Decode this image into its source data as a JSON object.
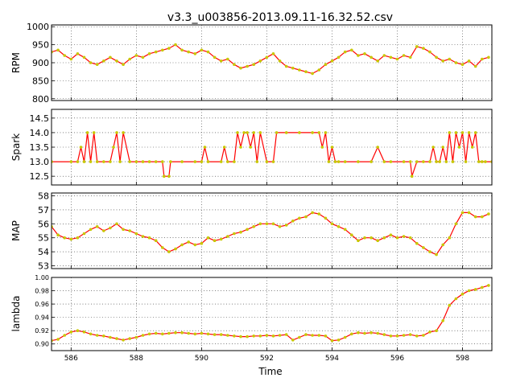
{
  "figure": {
    "title": "v3.3_u003856-2013.09.11-16.32.52.csv",
    "xlabel": "Time",
    "line_color": "#ff0000",
    "marker_color": "#c8c800"
  },
  "chart_data": [
    {
      "type": "line",
      "ylabel": "RPM",
      "xlim": [
        585.4,
        598.9
      ],
      "ylim": [
        795,
        1005
      ],
      "yticks": [
        "800",
        "850",
        "900",
        "950",
        "1000"
      ],
      "ytick_values": [
        800,
        850,
        900,
        950,
        1000
      ],
      "xticks": [],
      "grid": true,
      "series": [
        {
          "x": [
            585.4,
            585.6,
            585.8,
            586.0,
            586.2,
            586.4,
            586.6,
            586.8,
            587.0,
            587.2,
            587.4,
            587.6,
            587.8,
            588.0,
            588.2,
            588.4,
            588.6,
            588.8,
            589.0,
            589.2,
            589.4,
            589.6,
            589.8,
            590.0,
            590.2,
            590.4,
            590.6,
            590.8,
            591.0,
            591.2,
            591.4,
            591.6,
            591.8,
            592.0,
            592.2,
            592.4,
            592.6,
            592.8,
            593.0,
            593.2,
            593.4,
            593.6,
            593.8,
            594.0,
            594.2,
            594.4,
            594.6,
            594.8,
            595.0,
            595.2,
            595.4,
            595.6,
            595.8,
            596.0,
            596.2,
            596.4,
            596.6,
            596.8,
            597.0,
            597.2,
            597.4,
            597.6,
            597.8,
            598.0,
            598.2,
            598.4,
            598.6,
            598.8
          ],
          "y": [
            930,
            935,
            920,
            910,
            925,
            915,
            900,
            895,
            905,
            915,
            905,
            895,
            910,
            920,
            915,
            925,
            930,
            935,
            940,
            950,
            935,
            930,
            925,
            935,
            930,
            915,
            905,
            910,
            895,
            885,
            890,
            895,
            905,
            915,
            925,
            905,
            890,
            885,
            880,
            875,
            870,
            880,
            895,
            905,
            915,
            930,
            935,
            920,
            925,
            915,
            905,
            920,
            915,
            910,
            920,
            915,
            945,
            940,
            930,
            915,
            905,
            910,
            900,
            895,
            905,
            890,
            910,
            915
          ]
        }
      ]
    },
    {
      "type": "line",
      "ylabel": "Spark",
      "xlim": [
        585.4,
        598.9
      ],
      "ylim": [
        12.2,
        14.8
      ],
      "yticks": [
        "12.5",
        "13.0",
        "13.5",
        "14.0",
        "14.5"
      ],
      "ytick_values": [
        12.5,
        13.0,
        13.5,
        14.0,
        14.5
      ],
      "xticks": [],
      "grid": true,
      "series": [
        {
          "x": [
            585.4,
            586.0,
            586.2,
            586.3,
            586.4,
            586.5,
            586.6,
            586.7,
            586.8,
            587.0,
            587.2,
            587.3,
            587.4,
            587.5,
            587.6,
            587.8,
            588.0,
            588.2,
            588.4,
            588.6,
            588.8,
            588.85,
            589.0,
            589.05,
            589.4,
            589.8,
            590.0,
            590.1,
            590.2,
            590.6,
            590.7,
            590.8,
            591.0,
            591.1,
            591.2,
            591.3,
            591.4,
            591.5,
            591.6,
            591.7,
            591.8,
            592.0,
            592.2,
            592.3,
            592.6,
            593.0,
            593.4,
            593.6,
            593.7,
            593.8,
            593.9,
            594.0,
            594.1,
            594.2,
            594.4,
            594.8,
            595.2,
            595.4,
            595.6,
            595.8,
            596.2,
            596.4,
            596.45,
            596.6,
            596.8,
            597.0,
            597.1,
            597.2,
            597.3,
            597.4,
            597.5,
            597.6,
            597.7,
            597.8,
            597.9,
            598.0,
            598.1,
            598.2,
            598.3,
            598.4,
            598.5,
            598.6,
            598.7,
            598.9
          ],
          "y": [
            13.0,
            13.0,
            13.0,
            13.5,
            13.0,
            14.0,
            13.0,
            14.0,
            13.0,
            13.0,
            13.0,
            13.5,
            14.0,
            13.0,
            14.0,
            13.0,
            13.0,
            13.0,
            13.0,
            13.0,
            13.0,
            12.5,
            12.5,
            13.0,
            13.0,
            13.0,
            13.0,
            13.5,
            13.0,
            13.0,
            13.5,
            13.0,
            13.0,
            14.0,
            13.5,
            14.0,
            14.0,
            13.5,
            14.0,
            13.0,
            14.0,
            13.0,
            13.0,
            14.0,
            14.0,
            14.0,
            14.0,
            14.0,
            13.5,
            14.0,
            13.0,
            13.5,
            13.0,
            13.0,
            13.0,
            13.0,
            13.0,
            13.5,
            13.0,
            13.0,
            13.0,
            13.0,
            12.5,
            13.0,
            13.0,
            13.0,
            13.5,
            13.0,
            13.0,
            13.5,
            13.0,
            14.0,
            13.0,
            14.0,
            13.5,
            14.0,
            13.0,
            14.0,
            13.5,
            14.0,
            13.0,
            13.0,
            13.0,
            13.0
          ]
        }
      ]
    },
    {
      "type": "line",
      "ylabel": "MAP",
      "xlim": [
        585.4,
        598.9
      ],
      "ylim": [
        52.8,
        58.2
      ],
      "yticks": [
        "53",
        "54",
        "55",
        "56",
        "57",
        "58"
      ],
      "ytick_values": [
        53,
        54,
        55,
        56,
        57,
        58
      ],
      "xticks": [],
      "grid": true,
      "series": [
        {
          "x": [
            585.4,
            585.6,
            585.8,
            586.0,
            586.2,
            586.4,
            586.6,
            586.8,
            587.0,
            587.2,
            587.4,
            587.6,
            587.8,
            588.0,
            588.2,
            588.4,
            588.6,
            588.8,
            589.0,
            589.2,
            589.4,
            589.6,
            589.8,
            590.0,
            590.2,
            590.4,
            590.6,
            590.8,
            591.0,
            591.2,
            591.4,
            591.6,
            591.8,
            592.0,
            592.2,
            592.4,
            592.6,
            592.8,
            593.0,
            593.2,
            593.4,
            593.6,
            593.8,
            594.0,
            594.2,
            594.4,
            594.6,
            594.8,
            595.0,
            595.2,
            595.4,
            595.6,
            595.8,
            596.0,
            596.2,
            596.4,
            596.6,
            596.8,
            597.0,
            597.2,
            597.4,
            597.6,
            597.8,
            598.0,
            598.2,
            598.4,
            598.6,
            598.8
          ],
          "y": [
            55.8,
            55.2,
            55.0,
            54.9,
            55.0,
            55.3,
            55.6,
            55.8,
            55.5,
            55.7,
            56.0,
            55.6,
            55.5,
            55.3,
            55.1,
            55.0,
            54.8,
            54.3,
            54.0,
            54.2,
            54.5,
            54.7,
            54.5,
            54.6,
            55.0,
            54.8,
            54.9,
            55.1,
            55.3,
            55.4,
            55.6,
            55.8,
            56.0,
            56.0,
            56.0,
            55.8,
            55.9,
            56.2,
            56.4,
            56.5,
            56.8,
            56.7,
            56.4,
            56.0,
            55.8,
            55.6,
            55.2,
            54.8,
            55.0,
            55.0,
            54.8,
            55.0,
            55.2,
            55.0,
            55.1,
            55.0,
            54.6,
            54.3,
            54.0,
            53.8,
            54.5,
            55.0,
            56.0,
            56.8,
            56.8,
            56.5,
            56.5,
            56.7
          ]
        }
      ]
    },
    {
      "type": "line",
      "ylabel": "lambda",
      "xlim": [
        585.4,
        598.9
      ],
      "ylim": [
        0.89,
        1.0
      ],
      "yticks": [
        "0.90",
        "0.92",
        "0.94",
        "0.96",
        "0.98",
        "1.00"
      ],
      "ytick_values": [
        0.9,
        0.92,
        0.94,
        0.96,
        0.98,
        1.0
      ],
      "xticks": [
        "586",
        "588",
        "590",
        "592",
        "594",
        "596",
        "598"
      ],
      "xtick_values": [
        586,
        588,
        590,
        592,
        594,
        596,
        598
      ],
      "grid": true,
      "series": [
        {
          "x": [
            585.4,
            585.6,
            585.8,
            586.0,
            586.2,
            586.4,
            586.6,
            586.8,
            587.0,
            587.2,
            587.4,
            587.6,
            587.8,
            588.0,
            588.2,
            588.4,
            588.6,
            588.8,
            589.0,
            589.2,
            589.4,
            589.6,
            589.8,
            590.0,
            590.2,
            590.4,
            590.6,
            590.8,
            591.0,
            591.2,
            591.4,
            591.6,
            591.8,
            592.0,
            592.2,
            592.4,
            592.6,
            592.8,
            593.0,
            593.2,
            593.4,
            593.6,
            593.8,
            594.0,
            594.2,
            594.4,
            594.6,
            594.8,
            595.0,
            595.2,
            595.4,
            595.6,
            595.8,
            596.0,
            596.2,
            596.4,
            596.6,
            596.8,
            597.0,
            597.2,
            597.4,
            597.6,
            597.8,
            598.0,
            598.2,
            598.4,
            598.6,
            598.8
          ],
          "y": [
            0.905,
            0.907,
            0.913,
            0.918,
            0.92,
            0.918,
            0.915,
            0.913,
            0.912,
            0.91,
            0.908,
            0.906,
            0.908,
            0.91,
            0.913,
            0.915,
            0.916,
            0.915,
            0.916,
            0.917,
            0.917,
            0.916,
            0.915,
            0.916,
            0.915,
            0.914,
            0.914,
            0.913,
            0.912,
            0.911,
            0.911,
            0.912,
            0.912,
            0.913,
            0.912,
            0.913,
            0.914,
            0.906,
            0.91,
            0.914,
            0.913,
            0.913,
            0.912,
            0.905,
            0.906,
            0.91,
            0.915,
            0.917,
            0.916,
            0.917,
            0.916,
            0.914,
            0.912,
            0.912,
            0.913,
            0.914,
            0.912,
            0.913,
            0.918,
            0.92,
            0.935,
            0.958,
            0.968,
            0.975,
            0.98,
            0.982,
            0.985,
            0.988
          ]
        }
      ]
    }
  ]
}
